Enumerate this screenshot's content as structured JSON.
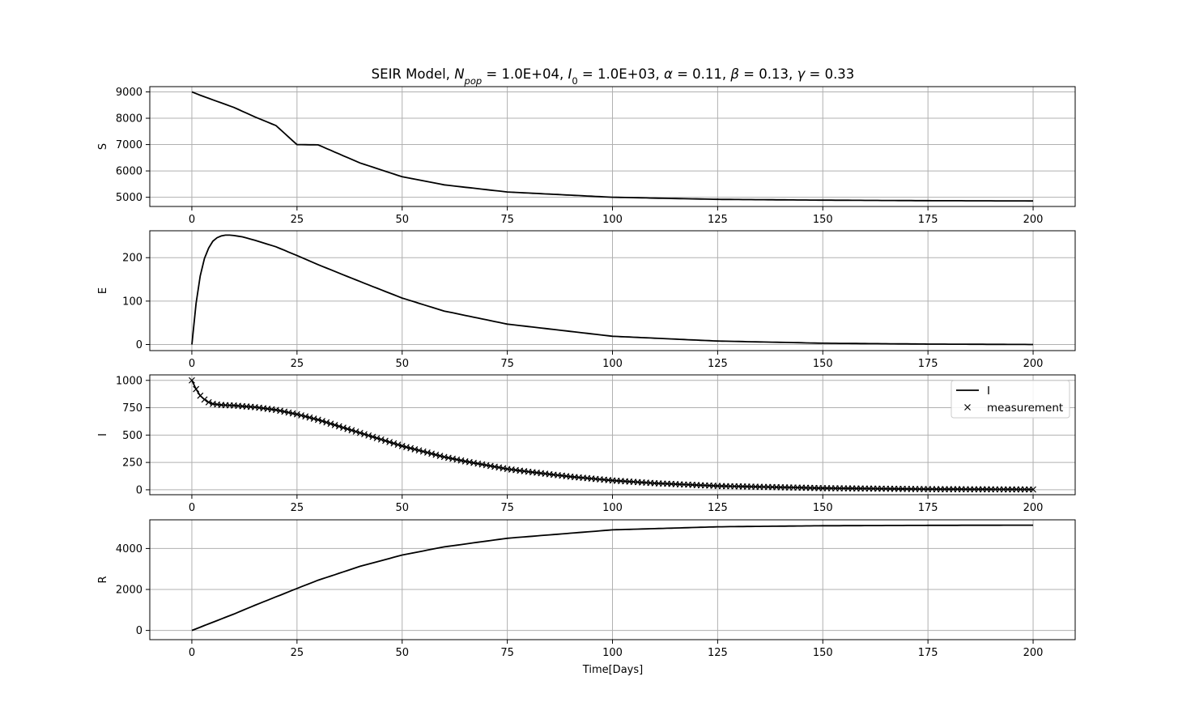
{
  "chart_data": {
    "type": "line",
    "title": {
      "prefix": "SEIR Model, ",
      "params": [
        {
          "sym": "N",
          "sub": "pop",
          "val": "1.0E+04"
        },
        {
          "sym": "I",
          "sub": "0",
          "val": "1.0E+03"
        },
        {
          "sym": "α",
          "sub": "",
          "val": "0.11"
        },
        {
          "sym": "β",
          "sub": "",
          "val": "0.13"
        },
        {
          "sym": "γ",
          "sub": "",
          "val": "0.33"
        }
      ]
    },
    "xlabel": "Time[Days]",
    "xlim": [
      -10,
      210
    ],
    "xticks": [
      0,
      25,
      50,
      75,
      100,
      125,
      150,
      175,
      200
    ],
    "grid": true,
    "panels": [
      {
        "ylabel": "S",
        "ylim": [
          4650,
          9200
        ],
        "yticks": [
          5000,
          6000,
          7000,
          8000,
          9000
        ],
        "series": [
          {
            "name": "S",
            "x": [
              0,
              1,
              2,
              5,
              10,
              15,
              20,
              25,
              30,
              40,
              50,
              60,
              75,
              100,
              125,
              150,
              175,
              200
            ],
            "y": [
              9000,
              8935,
              8875,
              8700,
              8410,
              8050,
              7720,
              7000,
              6990,
              6300,
              5780,
              5470,
              5200,
              5000,
              4920,
              4890,
              4870,
              4860
            ]
          }
        ]
      },
      {
        "ylabel": "E",
        "ylim": [
          -14,
          262
        ],
        "yticks": [
          0,
          100,
          200
        ],
        "series": [
          {
            "name": "E",
            "x": [
              0,
              1,
              2,
              3,
              4,
              5,
              6,
              7,
              8,
              9,
              10,
              12,
              15,
              20,
              25,
              30,
              40,
              50,
              60,
              75,
              100,
              125,
              150,
              175,
              200
            ],
            "y": [
              0,
              95,
              158,
              198,
              222,
              238,
              246,
              250,
              252,
              252,
              251,
              248,
              240,
              225,
              205,
              184,
              145,
              107,
              77,
              47,
              19,
              8,
              3,
              1,
              0
            ]
          }
        ]
      },
      {
        "ylabel": "I",
        "ylim": [
          -45,
          1050
        ],
        "yticks": [
          0,
          250,
          500,
          750,
          1000
        ],
        "legend": {
          "position": "upper right",
          "entries": [
            "I",
            "measurement"
          ]
        },
        "series": [
          {
            "name": "I",
            "x": [
              0,
              1,
              2,
              3,
              4,
              5,
              7,
              10,
              15,
              20,
              25,
              30,
              35,
              40,
              45,
              50,
              55,
              60,
              65,
              70,
              75,
              80,
              90,
              100,
              110,
              125,
              150,
              175,
              200
            ],
            "y": [
              1000,
              920,
              860,
              825,
              800,
              785,
              775,
              770,
              755,
              730,
              690,
              640,
              580,
              520,
              460,
              400,
              350,
              300,
              260,
              225,
              190,
              165,
              120,
              85,
              60,
              35,
              15,
              6,
              3
            ]
          },
          {
            "name": "measurement",
            "marker": "x",
            "x_step": 1
          }
        ]
      },
      {
        "ylabel": "R",
        "ylim": [
          -450,
          5400
        ],
        "yticks": [
          0,
          2000,
          4000
        ],
        "series": [
          {
            "name": "R",
            "x": [
              0,
              5,
              10,
              15,
              20,
              25,
              30,
              40,
              50,
              60,
              75,
              100,
              125,
              150,
              175,
              200
            ],
            "y": [
              0,
              400,
              800,
              1230,
              1640,
              2050,
              2450,
              3130,
              3680,
              4080,
              4500,
              4910,
              5060,
              5110,
              5130,
              5140
            ]
          }
        ]
      }
    ]
  }
}
